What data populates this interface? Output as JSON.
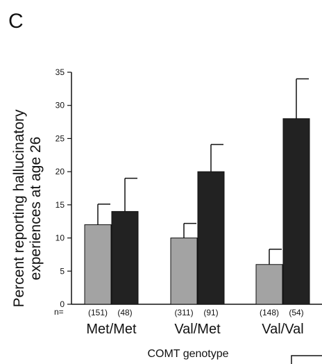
{
  "panel_label": "C",
  "chart_data": {
    "type": "bar",
    "ylabel_lines": [
      "Percent reporting hallucinatory",
      "experiences at age 26"
    ],
    "xlabel": "COMT genotype",
    "categories": [
      "Met/Met",
      "Val/Met",
      "Val/Val"
    ],
    "n_prefix": "n=",
    "n_labels": [
      [
        "(151)",
        "(48)"
      ],
      [
        "(311)",
        "(91)"
      ],
      [
        "(148)",
        "(54)"
      ]
    ],
    "series": [
      {
        "values": [
          12,
          10,
          6
        ],
        "errors": [
          3.1,
          2.2,
          2.3
        ],
        "color": "#a3a3a3"
      },
      {
        "values": [
          14,
          20,
          28
        ],
        "errors": [
          5,
          4.1,
          6
        ],
        "color": "#222222"
      }
    ],
    "ylim": [
      0,
      35
    ],
    "yticks": [
      0,
      5,
      10,
      15,
      20,
      25,
      30,
      35
    ],
    "legend": "none",
    "grid": false
  }
}
